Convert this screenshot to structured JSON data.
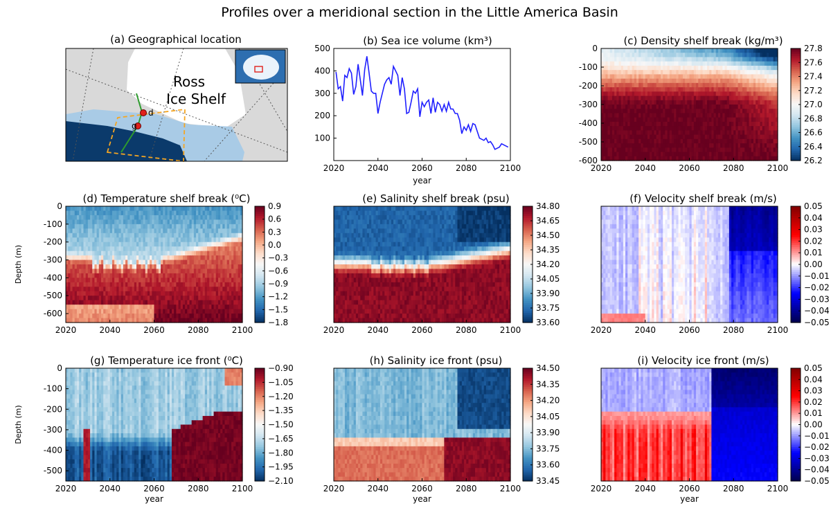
{
  "figure": {
    "title": "Profiles over a meridional section in the Little America Basin"
  },
  "map": {
    "title": "(a) Geographical location",
    "label_line1": "Ross",
    "label_line2": "Ice Shelf",
    "point_d_label": "d",
    "point_g_label": "g",
    "colors": {
      "ocean_deep": "#0b3a6b",
      "ocean_shelf": "#a9cbe6",
      "ice": "#ffffff",
      "land": "#d9d9d9",
      "section": "#2e9b2e",
      "box": "#f5a623",
      "point": "#e0201b"
    }
  },
  "chart_data": [
    {
      "id": "b",
      "type": "line",
      "title": "(b) Sea ice volume (km³)",
      "xlabel": "year",
      "xlim": [
        2020,
        2100
      ],
      "ylim": [
        0,
        500
      ],
      "xticks": [
        2020,
        2040,
        2060,
        2080,
        2100
      ],
      "yticks": [
        100,
        200,
        300,
        400,
        500
      ],
      "color": "#1f1fff",
      "x": [
        2021,
        2022,
        2023,
        2024,
        2025,
        2026,
        2027,
        2028,
        2029,
        2030,
        2031,
        2032,
        2033,
        2034,
        2035,
        2036,
        2037,
        2038,
        2039,
        2040,
        2041,
        2042,
        2043,
        2044,
        2045,
        2046,
        2047,
        2048,
        2049,
        2050,
        2051,
        2052,
        2053,
        2054,
        2055,
        2056,
        2057,
        2058,
        2059,
        2060,
        2061,
        2062,
        2063,
        2064,
        2065,
        2066,
        2067,
        2068,
        2069,
        2070,
        2071,
        2072,
        2073,
        2074,
        2075,
        2076,
        2077,
        2078,
        2079,
        2080,
        2081,
        2082,
        2083,
        2084,
        2085,
        2086,
        2087,
        2088,
        2089,
        2090,
        2091,
        2092,
        2093,
        2094,
        2095,
        2096,
        2097,
        2098,
        2099
      ],
      "values": [
        395,
        320,
        330,
        265,
        380,
        370,
        410,
        390,
        295,
        330,
        430,
        360,
        290,
        405,
        465,
        390,
        310,
        300,
        300,
        210,
        260,
        300,
        340,
        360,
        370,
        340,
        420,
        400,
        380,
        290,
        370,
        320,
        210,
        215,
        260,
        310,
        300,
        320,
        195,
        260,
        240,
        260,
        270,
        210,
        280,
        215,
        260,
        250,
        220,
        250,
        220,
        260,
        230,
        230,
        210,
        210,
        180,
        120,
        150,
        135,
        160,
        130,
        165,
        160,
        130,
        100,
        95,
        90,
        100,
        80,
        85,
        70,
        50,
        55,
        60,
        75,
        70,
        65,
        60
      ]
    },
    {
      "id": "c",
      "type": "heatmap",
      "title": "(c) Density shelf break (kg/m³)",
      "xlim": [
        2020,
        2100
      ],
      "ylim": [
        -600,
        0
      ],
      "xticks": [
        2020,
        2040,
        2060,
        2080,
        2100
      ],
      "yticks": [
        0,
        -100,
        -200,
        -300,
        -400,
        -500,
        -600
      ],
      "colorbar": {
        "min": 26.2,
        "max": 27.8,
        "ticks": [
          "27.8",
          "27.6",
          "27.4",
          "27.2",
          "27.0",
          "26.8",
          "26.6",
          "26.4",
          "26.2"
        ],
        "cmap": "RdBu_r"
      }
    },
    {
      "id": "d",
      "type": "heatmap",
      "title": "(d) Temperature shelf break (⁰C)",
      "ylabel": "Depth (m)",
      "xlim": [
        2020,
        2100
      ],
      "ylim": [
        -650,
        0
      ],
      "xticks": [
        2020,
        2040,
        2060,
        2080,
        2100
      ],
      "yticks": [
        0,
        -100,
        -200,
        -300,
        -400,
        -500,
        -600
      ],
      "colorbar": {
        "min": -1.8,
        "max": 0.9,
        "ticks": [
          "0.9",
          "0.6",
          "0.3",
          "0.0",
          "−0.3",
          "−0.6",
          "−0.9",
          "−1.2",
          "−1.5",
          "−1.8"
        ],
        "cmap": "RdBu_r"
      }
    },
    {
      "id": "e",
      "type": "heatmap",
      "title": "(e) Salinity shelf break (psu)",
      "xlim": [
        2020,
        2100
      ],
      "ylim": [
        -650,
        0
      ],
      "xticks": [
        2020,
        2040,
        2060,
        2080,
        2100
      ],
      "colorbar": {
        "min": 33.6,
        "max": 34.8,
        "ticks": [
          "34.80",
          "34.65",
          "34.50",
          "34.35",
          "34.20",
          "34.05",
          "33.90",
          "33.75",
          "33.60"
        ],
        "cmap": "RdBu_r"
      }
    },
    {
      "id": "f",
      "type": "heatmap",
      "title": "(f) Velocity shelf break (m/s)",
      "xlim": [
        2020,
        2100
      ],
      "ylim": [
        -650,
        0
      ],
      "xticks": [
        2020,
        2040,
        2060,
        2080,
        2100
      ],
      "colorbar": {
        "min": -0.05,
        "max": 0.05,
        "ticks": [
          "0.05",
          "0.04",
          "0.03",
          "0.02",
          "0.01",
          "0.00",
          "−0.01",
          "−0.02",
          "−0.03",
          "−0.04",
          "−0.05"
        ],
        "cmap": "seismic"
      }
    },
    {
      "id": "g",
      "type": "heatmap",
      "title": "(g) Temperature ice front (⁰C)",
      "ylabel": "Depth (m)",
      "xlabel": "year",
      "xlim": [
        2020,
        2100
      ],
      "ylim": [
        -550,
        0
      ],
      "xticks": [
        2020,
        2040,
        2060,
        2080,
        2100
      ],
      "yticks": [
        0,
        -100,
        -200,
        -300,
        -400,
        -500
      ],
      "colorbar": {
        "min": -2.1,
        "max": -0.9,
        "ticks": [
          "−0.90",
          "−1.05",
          "−1.20",
          "−1.35",
          "−1.50",
          "−1.65",
          "−1.80",
          "−1.95",
          "−2.10"
        ],
        "cmap": "RdBu_r"
      }
    },
    {
      "id": "h",
      "type": "heatmap",
      "title": "(h) Salinity ice front (psu)",
      "xlabel": "year",
      "xlim": [
        2020,
        2100
      ],
      "ylim": [
        -550,
        0
      ],
      "xticks": [
        2020,
        2040,
        2060,
        2080,
        2100
      ],
      "colorbar": {
        "min": 33.45,
        "max": 34.5,
        "ticks": [
          "34.50",
          "34.35",
          "34.20",
          "34.05",
          "33.90",
          "33.75",
          "33.60",
          "33.45"
        ],
        "cmap": "RdBu_r"
      }
    },
    {
      "id": "i",
      "type": "heatmap",
      "title": "(i) Velocity ice front (m/s)",
      "xlabel": "year",
      "xlim": [
        2020,
        2100
      ],
      "ylim": [
        -550,
        0
      ],
      "xticks": [
        2020,
        2040,
        2060,
        2080,
        2100
      ],
      "colorbar": {
        "min": -0.05,
        "max": 0.05,
        "ticks": [
          "0.05",
          "0.04",
          "0.03",
          "0.02",
          "0.01",
          "0.00",
          "−0.01",
          "−0.02",
          "−0.03",
          "−0.04",
          "−0.05"
        ],
        "cmap": "seismic"
      }
    }
  ]
}
